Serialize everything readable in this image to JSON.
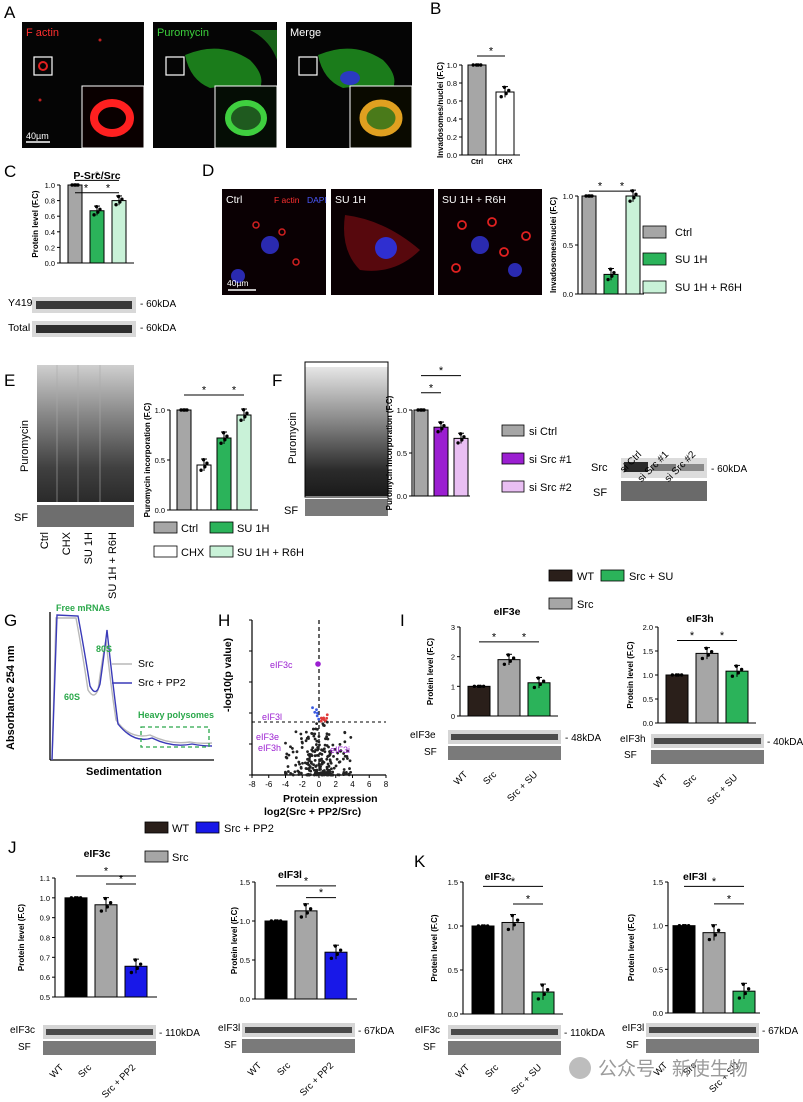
{
  "panel_letters": {
    "A": "A",
    "B": "B",
    "C": "C",
    "D": "D",
    "E": "E",
    "F": "F",
    "G": "G",
    "H": "H",
    "I": "I",
    "J": "J",
    "K": "K"
  },
  "panelA": {
    "labels": [
      "F actin",
      "Puromycin",
      "Merge"
    ],
    "scalebar": "40µm"
  },
  "panelD": {
    "labels": [
      "Ctrl",
      "SU 1H",
      "SU 1H + R6H"
    ],
    "stain1": "F actin",
    "stain2": "DAPI",
    "scalebar": "40µm"
  },
  "common": {
    "fc_unit": "(F.C)",
    "star": "*",
    "sf": "SF"
  },
  "blots": {
    "C_y419": "Y419",
    "C_total": "Total",
    "kda60": "- 60kDA",
    "E_puro": "Puromycin",
    "F_puro": "Puromycin",
    "F_src": "Src",
    "F_60": "- 60kDA",
    "I_eif3e": "eIF3e",
    "I_48": "- 48kDA",
    "I_eif3h": "eIF3h",
    "I_40": "- 40kDA",
    "J_eif3c": "eIF3c",
    "J_110": "- 110kDA",
    "J_eif3l": "eIF3l",
    "J_67": "- 67kDA",
    "K_eif3c": "eIF3c",
    "K_110": "- 110kDA",
    "K_eif3l": "eIF3l",
    "K_67": "- 67kDA"
  },
  "lanes": {
    "E": [
      "Ctrl",
      "CHX",
      "SU 1H",
      "SU 1H + R6H"
    ],
    "F": [
      "si Ctrl",
      "si Src #1",
      "si Src #2"
    ],
    "ISU": [
      "WT",
      "Src",
      "Src + SU"
    ],
    "JPP2": [
      "WT",
      "Src",
      "Src + PP2"
    ]
  },
  "legends": {
    "D": [
      "Ctrl",
      "SU 1H",
      "SU 1H + R6H"
    ],
    "E": [
      "Ctrl",
      "SU 1H",
      "CHX",
      "SU 1H + R6H"
    ],
    "F": [
      "si Ctrl",
      "si Src #1",
      "si Src #2"
    ],
    "I": [
      "WT",
      "Src + SU",
      "Src"
    ],
    "J": [
      "WT",
      "Src + PP2",
      "Src"
    ]
  },
  "colors": {
    "gray": "#a6a6a6",
    "green": "#2bb35a",
    "lightgreen": "#c9f2d8",
    "dark": "#2a1f1a",
    "purple": "#9b1fd1",
    "lilac": "#e9bff3",
    "blue": "#1818e8",
    "black": "#000000",
    "white": "#ffffff"
  },
  "chart_data": [
    {
      "id": "B",
      "type": "bar",
      "categories": [
        "Ctrl",
        "CHX"
      ],
      "values": [
        1.0,
        0.7
      ],
      "ylabel": "Invadosomes/nuclei (F.C)",
      "ylim": [
        0,
        1.0
      ],
      "yticks": [
        "0.0",
        "0.2",
        "0.4",
        "0.6",
        "0.8",
        "1.0"
      ]
    },
    {
      "id": "C",
      "type": "bar",
      "title": "P-Src/Src",
      "categories": [
        "Ctrl",
        "SU 1H",
        "SU 1H + R6H"
      ],
      "values": [
        1.0,
        0.67,
        0.8
      ],
      "ylabel": "Protein level (F.C)",
      "ylim": [
        0,
        1.0
      ],
      "yticks": [
        "0.0",
        "0.2",
        "0.4",
        "0.6",
        "0.8",
        "1.0"
      ]
    },
    {
      "id": "D",
      "type": "bar",
      "categories": [
        "Ctrl",
        "SU 1H",
        "SU 1H + R6H"
      ],
      "values": [
        1.0,
        0.2,
        1.0
      ],
      "ylabel": "Invadosomes/nuclei (F.C)",
      "ylim": [
        0,
        1.0
      ],
      "yticks": [
        "0.0",
        "0.5",
        "1.0"
      ]
    },
    {
      "id": "E",
      "type": "bar",
      "categories": [
        "Ctrl",
        "CHX",
        "SU 1H",
        "SU 1H + R6H"
      ],
      "values": [
        1.0,
        0.45,
        0.72,
        0.95
      ],
      "ylabel": "Puromycin incorporation (F.C)",
      "ylim": [
        0,
        1.0
      ],
      "yticks": [
        "0.0",
        "0.5",
        "1.0"
      ]
    },
    {
      "id": "F",
      "type": "bar",
      "categories": [
        "si Ctrl",
        "si Src #1",
        "si Src #2"
      ],
      "values": [
        1.0,
        0.8,
        0.67
      ],
      "ylabel": "Puromycin incorporation (F.C)",
      "ylim": [
        0,
        1.0
      ],
      "yticks": [
        "0.0",
        "0.5",
        "1.0"
      ]
    },
    {
      "id": "G",
      "type": "line",
      "series": [
        {
          "name": "Src"
        },
        {
          "name": "Src + PP2"
        }
      ],
      "ylabel": "Absorbance 254 nm",
      "xlabel": "Sedimentation",
      "annotations": [
        "Free mRNAs",
        "80S",
        "60S",
        "Heavy polysomes"
      ]
    },
    {
      "id": "H",
      "type": "scatter",
      "ylabel": "-log10(p value)",
      "xlabel": "Protein expression",
      "xlabel2": "log2(Src + PP2/Src)",
      "xticks": [
        "-8",
        "-6",
        "-4",
        "-2",
        "0",
        "2",
        "4",
        "6",
        "8"
      ],
      "yticks": [
        "0",
        "1",
        "2",
        "3",
        "4",
        "5"
      ],
      "labels": [
        "eIF3c",
        "eIF3l",
        "eIF3e",
        "eIF3h",
        "eIF3i"
      ]
    },
    {
      "id": "I1",
      "type": "bar",
      "title": "eIF3e",
      "categories": [
        "WT",
        "Src",
        "Src + SU"
      ],
      "values": [
        1.0,
        1.9,
        1.12
      ],
      "ylabel": "Protein level (F.C)",
      "ylim": [
        0,
        3
      ],
      "yticks": [
        "0",
        "1",
        "2",
        "3"
      ]
    },
    {
      "id": "I2",
      "type": "bar",
      "title": "eIF3h",
      "categories": [
        "WT",
        "Src",
        "Src + SU"
      ],
      "values": [
        1.0,
        1.45,
        1.08
      ],
      "ylabel": "Protein level (F.C)",
      "ylim": [
        0,
        2.0
      ],
      "yticks": [
        "0.0",
        "0.5",
        "1.0",
        "1.5",
        "2.0"
      ]
    },
    {
      "id": "J1",
      "type": "bar",
      "title": "eIF3c",
      "categories": [
        "WT",
        "Src",
        "Src + PP2"
      ],
      "values": [
        1.0,
        0.965,
        0.655
      ],
      "ylabel": "Protein level (F.C)",
      "ylim": [
        0.5,
        1.1
      ],
      "yticks": [
        "0.5",
        "0.6",
        "0.7",
        "0.8",
        "0.9",
        "1.0",
        "1.1"
      ]
    },
    {
      "id": "J2",
      "type": "bar",
      "title": "eIF3l",
      "categories": [
        "WT",
        "Src",
        "Src + PP2"
      ],
      "values": [
        1.0,
        1.13,
        0.6
      ],
      "ylabel": "Protein level (F.C)",
      "ylim": [
        0,
        1.5
      ],
      "yticks": [
        "0.0",
        "0.5",
        "1.0",
        "1.5"
      ]
    },
    {
      "id": "K1",
      "type": "bar",
      "title": "eIF3c",
      "categories": [
        "WT",
        "Src",
        "Src + SU"
      ],
      "values": [
        1.0,
        1.04,
        0.25
      ],
      "ylabel": "Protein level (F.C)",
      "ylim": [
        0,
        1.5
      ],
      "yticks": [
        "0.0",
        "0.5",
        "1.0",
        "1.5"
      ]
    },
    {
      "id": "K2",
      "type": "bar",
      "title": "eIF3l",
      "categories": [
        "WT",
        "Src",
        "Src + SU"
      ],
      "values": [
        1.0,
        0.92,
        0.25
      ],
      "ylabel": "Protein level (F.C)",
      "ylim": [
        0,
        1.5
      ],
      "yticks": [
        "0.0",
        "0.5",
        "1.0",
        "1.5"
      ]
    }
  ],
  "watermark": "公众号 · 新使生物"
}
